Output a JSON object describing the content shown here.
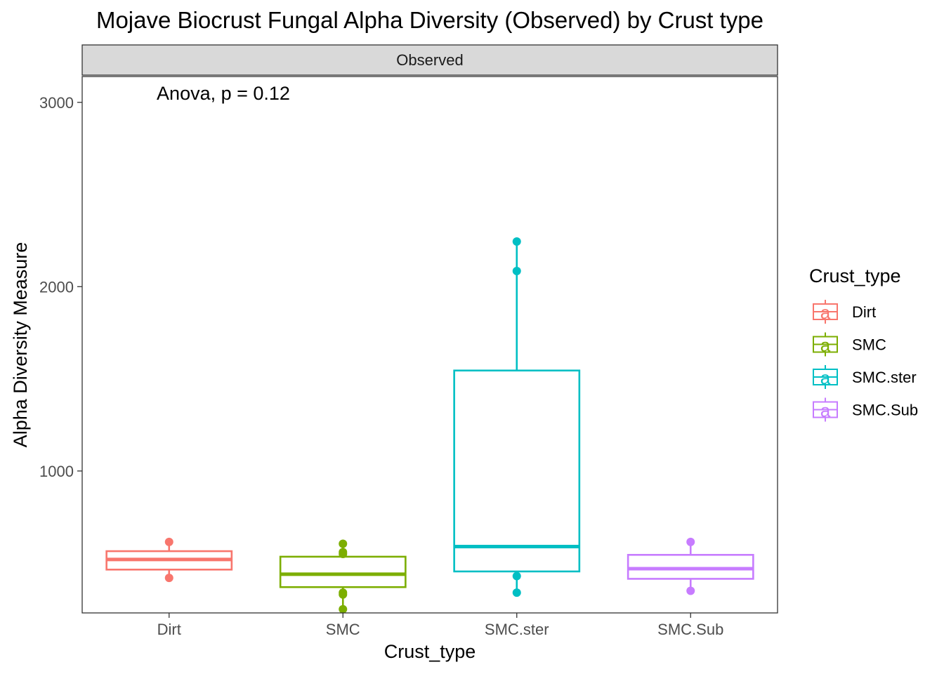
{
  "chart_data": {
    "type": "boxplot",
    "title": "Mojave Biocrust Fungal Alpha Diversity (Observed) by Crust type",
    "facet_label": "Observed",
    "xlabel": "Crust_type",
    "ylabel": "Alpha Diversity Measure",
    "ylim": [
      230,
      3140
    ],
    "yticks": [
      1000,
      2000,
      3000
    ],
    "categories": [
      "Dirt",
      "SMC",
      "SMC.ster",
      "SMC.Sub"
    ],
    "annotation": {
      "text": "Anova, p = 0.12",
      "x_category": "Dirt",
      "y": 3040
    },
    "legend": {
      "title": "Crust_type",
      "position": "right",
      "key_glyph": "a"
    },
    "grid": false,
    "series": [
      {
        "name": "Dirt",
        "color": "#F8766D",
        "box": {
          "q1": 465,
          "median": 520,
          "q3": 565,
          "whisker_low": 420,
          "whisker_high": 615
        },
        "points": [
          615,
          420
        ]
      },
      {
        "name": "SMC",
        "color": "#7CAE00",
        "box": {
          "q1": 370,
          "median": 440,
          "q3": 535,
          "whisker_low": 250,
          "whisker_high": 605
        },
        "points": [
          605,
          560,
          550,
          340,
          330,
          250
        ]
      },
      {
        "name": "SMC.ster",
        "color": "#00BFC4",
        "box": {
          "q1": 455,
          "median": 590,
          "q3": 1545,
          "whisker_low": 340,
          "whisker_high": 2245
        },
        "points": [
          2245,
          2085,
          430,
          340
        ]
      },
      {
        "name": "SMC.Sub",
        "color": "#C77CFF",
        "box": {
          "q1": 415,
          "median": 470,
          "q3": 545,
          "whisker_low": 350,
          "whisker_high": 615
        },
        "points": [
          615,
          350
        ]
      }
    ]
  }
}
